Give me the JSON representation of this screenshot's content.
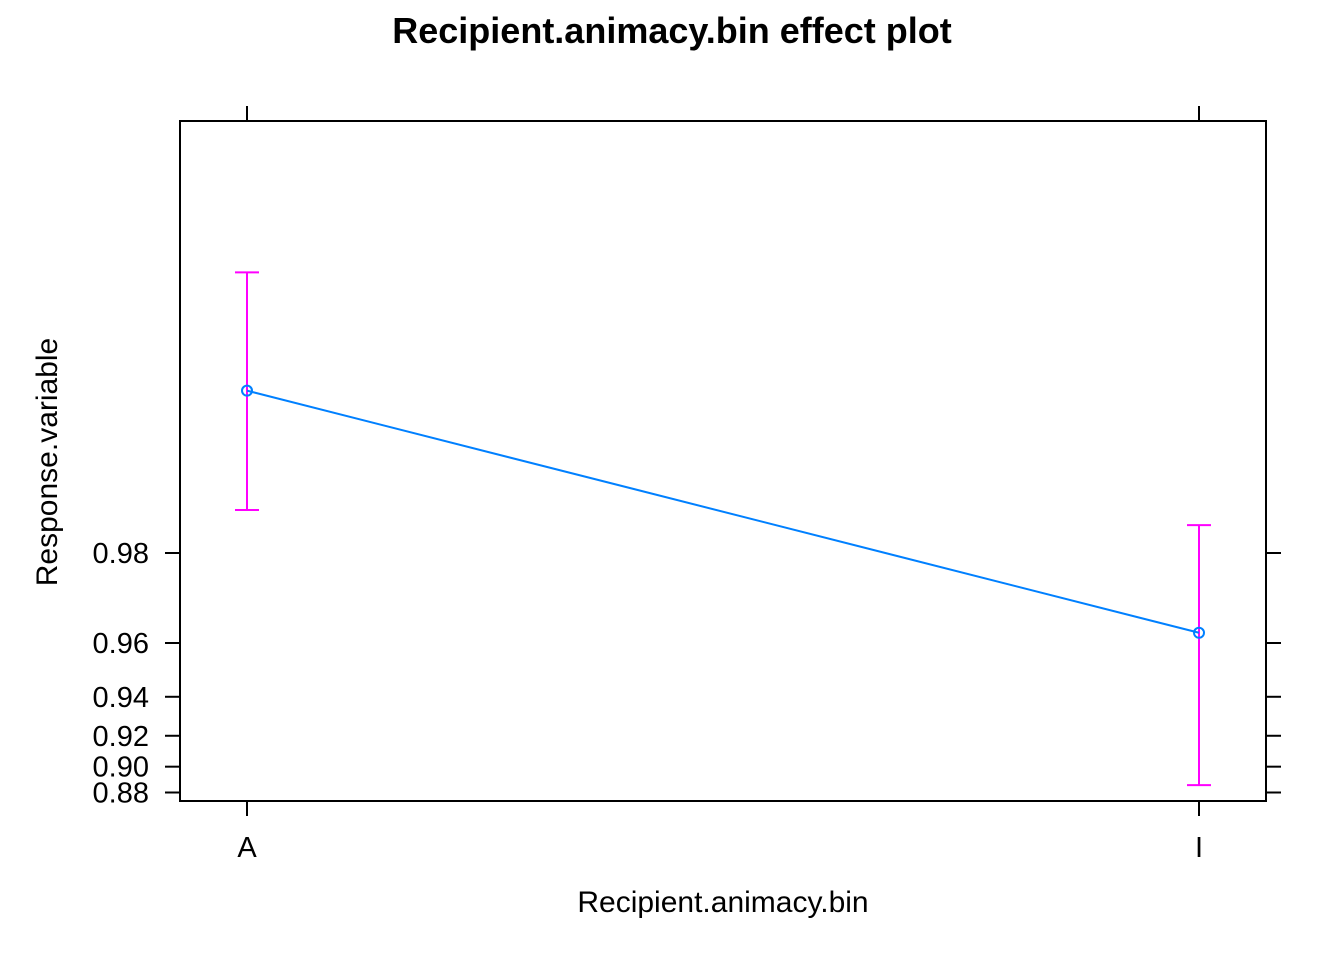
{
  "chart_data": {
    "type": "line",
    "title": "Recipient.animacy.bin effect plot",
    "xlabel": "Recipient.animacy.bin",
    "ylabel": "Response.variable",
    "categories": [
      "A",
      "I"
    ],
    "y_scale": "logit",
    "y_ticks": [
      0.88,
      0.9,
      0.92,
      0.94,
      0.96,
      0.98
    ],
    "y_tick_labels": [
      "0.88",
      "0.90",
      "0.92",
      "0.94",
      "0.96",
      "0.98"
    ],
    "series": [
      {
        "values": [
          0.9944,
          0.963
        ],
        "lower": [
          0.9857,
          0.886
        ],
        "upper": [
          0.9978,
          0.9839
        ]
      }
    ],
    "grid": false,
    "colors": {
      "line": "#0080ff",
      "error_bars": "#ff00ff",
      "axes": "#000000"
    }
  }
}
